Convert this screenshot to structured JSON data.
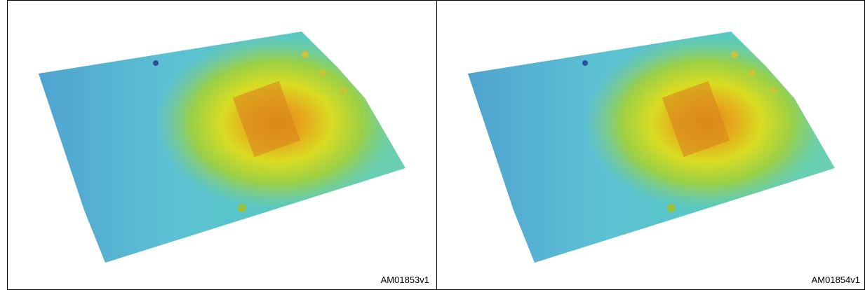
{
  "panels": [
    {
      "label": "AM01853v1"
    },
    {
      "label": "AM01854v1"
    }
  ]
}
